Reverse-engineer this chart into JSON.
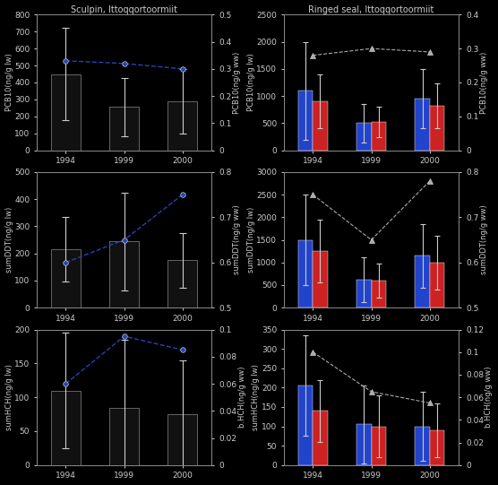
{
  "years": [
    "1994",
    "1999",
    "2000"
  ],
  "sculpin": {
    "title": "Sculpin, Ittoqqortoormiit",
    "pcb": {
      "bar_vals": [
        450,
        255,
        290
      ],
      "bar_errs": [
        270,
        170,
        190
      ],
      "line_vals": [
        0.33,
        0.32,
        0.3
      ],
      "ylabel_left": "PCB10(ng/g lw)",
      "ylabel_right": "PCB10(ng/g ww)",
      "ylim_left": [
        0,
        800
      ],
      "ylim_right": [
        0,
        0.5
      ],
      "yticks_left": [
        0,
        100,
        200,
        300,
        400,
        500,
        600,
        700,
        800
      ],
      "yticks_right": [
        0,
        0.1,
        0.2,
        0.3,
        0.4,
        0.5
      ]
    },
    "ddt": {
      "bar_vals": [
        215,
        245,
        175
      ],
      "bar_errs": [
        120,
        180,
        100
      ],
      "line_vals": [
        0.6,
        0.65,
        0.75
      ],
      "ylabel_left": "sumDDT(ng/g lw)",
      "ylabel_right": "sumDDT(ng/g ww)",
      "ylim_left": [
        0,
        500
      ],
      "ylim_right": [
        0.5,
        0.8
      ],
      "yticks_left": [
        0,
        100,
        200,
        300,
        400,
        500
      ],
      "yticks_right": [
        0.5,
        0.6,
        0.7,
        0.8
      ]
    },
    "hch": {
      "bar_vals": [
        110,
        85,
        75
      ],
      "bar_errs": [
        85,
        100,
        80
      ],
      "line_vals": [
        0.06,
        0.095,
        0.085
      ],
      "ylabel_left": "sumHCH(ng/g lw)",
      "ylabel_right": "b.HCH(ng/g ww)",
      "ylim_left": [
        0,
        200
      ],
      "ylim_right": [
        0,
        0.1
      ],
      "yticks_left": [
        0,
        50,
        100,
        150,
        200
      ],
      "yticks_right": [
        0,
        0.02,
        0.04,
        0.06,
        0.08,
        0.1
      ]
    }
  },
  "seal": {
    "title": "Ringed seal, Ittoqqortoormiit",
    "pcb": {
      "male_vals": [
        1100,
        500,
        950
      ],
      "male_errs": [
        900,
        350,
        550
      ],
      "female_vals": [
        900,
        520,
        820
      ],
      "female_errs": [
        500,
        280,
        420
      ],
      "line_vals": [
        0.28,
        0.3,
        0.29
      ],
      "ylabel_left": "PCB10(ng/g lw)",
      "ylabel_right": "PCB10(ng/g ww)",
      "ylim_left": [
        0,
        2500
      ],
      "ylim_right": [
        0,
        0.4
      ],
      "yticks_left": [
        0,
        500,
        1000,
        1500,
        2000,
        2500
      ],
      "yticks_right": [
        0,
        0.1,
        0.2,
        0.3,
        0.4
      ]
    },
    "ddt": {
      "male_vals": [
        1500,
        620,
        1150
      ],
      "male_errs": [
        1000,
        500,
        700
      ],
      "female_vals": [
        1250,
        600,
        1000
      ],
      "female_errs": [
        700,
        380,
        600
      ],
      "line_vals": [
        0.75,
        0.65,
        0.78
      ],
      "ylabel_left": "sumDDT(ng/g lw)",
      "ylabel_right": "sumDDT(ng/g ww)",
      "ylim_left": [
        0,
        3000
      ],
      "ylim_right": [
        0.5,
        0.8
      ],
      "yticks_left": [
        0,
        500,
        1000,
        1500,
        2000,
        2500,
        3000
      ],
      "yticks_right": [
        0.5,
        0.6,
        0.7,
        0.8
      ]
    },
    "hch": {
      "male_vals": [
        205,
        105,
        100
      ],
      "male_errs": [
        130,
        100,
        90
      ],
      "female_vals": [
        140,
        100,
        90
      ],
      "female_errs": [
        80,
        80,
        70
      ],
      "line_vals": [
        0.1,
        0.065,
        0.055
      ],
      "ylabel_left": "sumHCH(ng/g lw)",
      "ylabel_right": "b.HCH(ng/g ww)",
      "ylim_left": [
        0,
        350
      ],
      "ylim_right": [
        0,
        0.12
      ],
      "yticks_left": [
        0,
        50,
        100,
        150,
        200,
        250,
        300,
        350
      ],
      "yticks_right": [
        0,
        0.02,
        0.04,
        0.06,
        0.08,
        0.1,
        0.12
      ]
    }
  },
  "bar_color_black": "#111111",
  "bar_color_blue": "#2244cc",
  "bar_color_red": "#cc2222",
  "bg_color": "#000000",
  "text_color": "#cccccc",
  "spine_color": "#888888",
  "line_color_sculpin": "#2244bb",
  "line_color_seal": "#aaaaaa",
  "fontsize": 6.5
}
